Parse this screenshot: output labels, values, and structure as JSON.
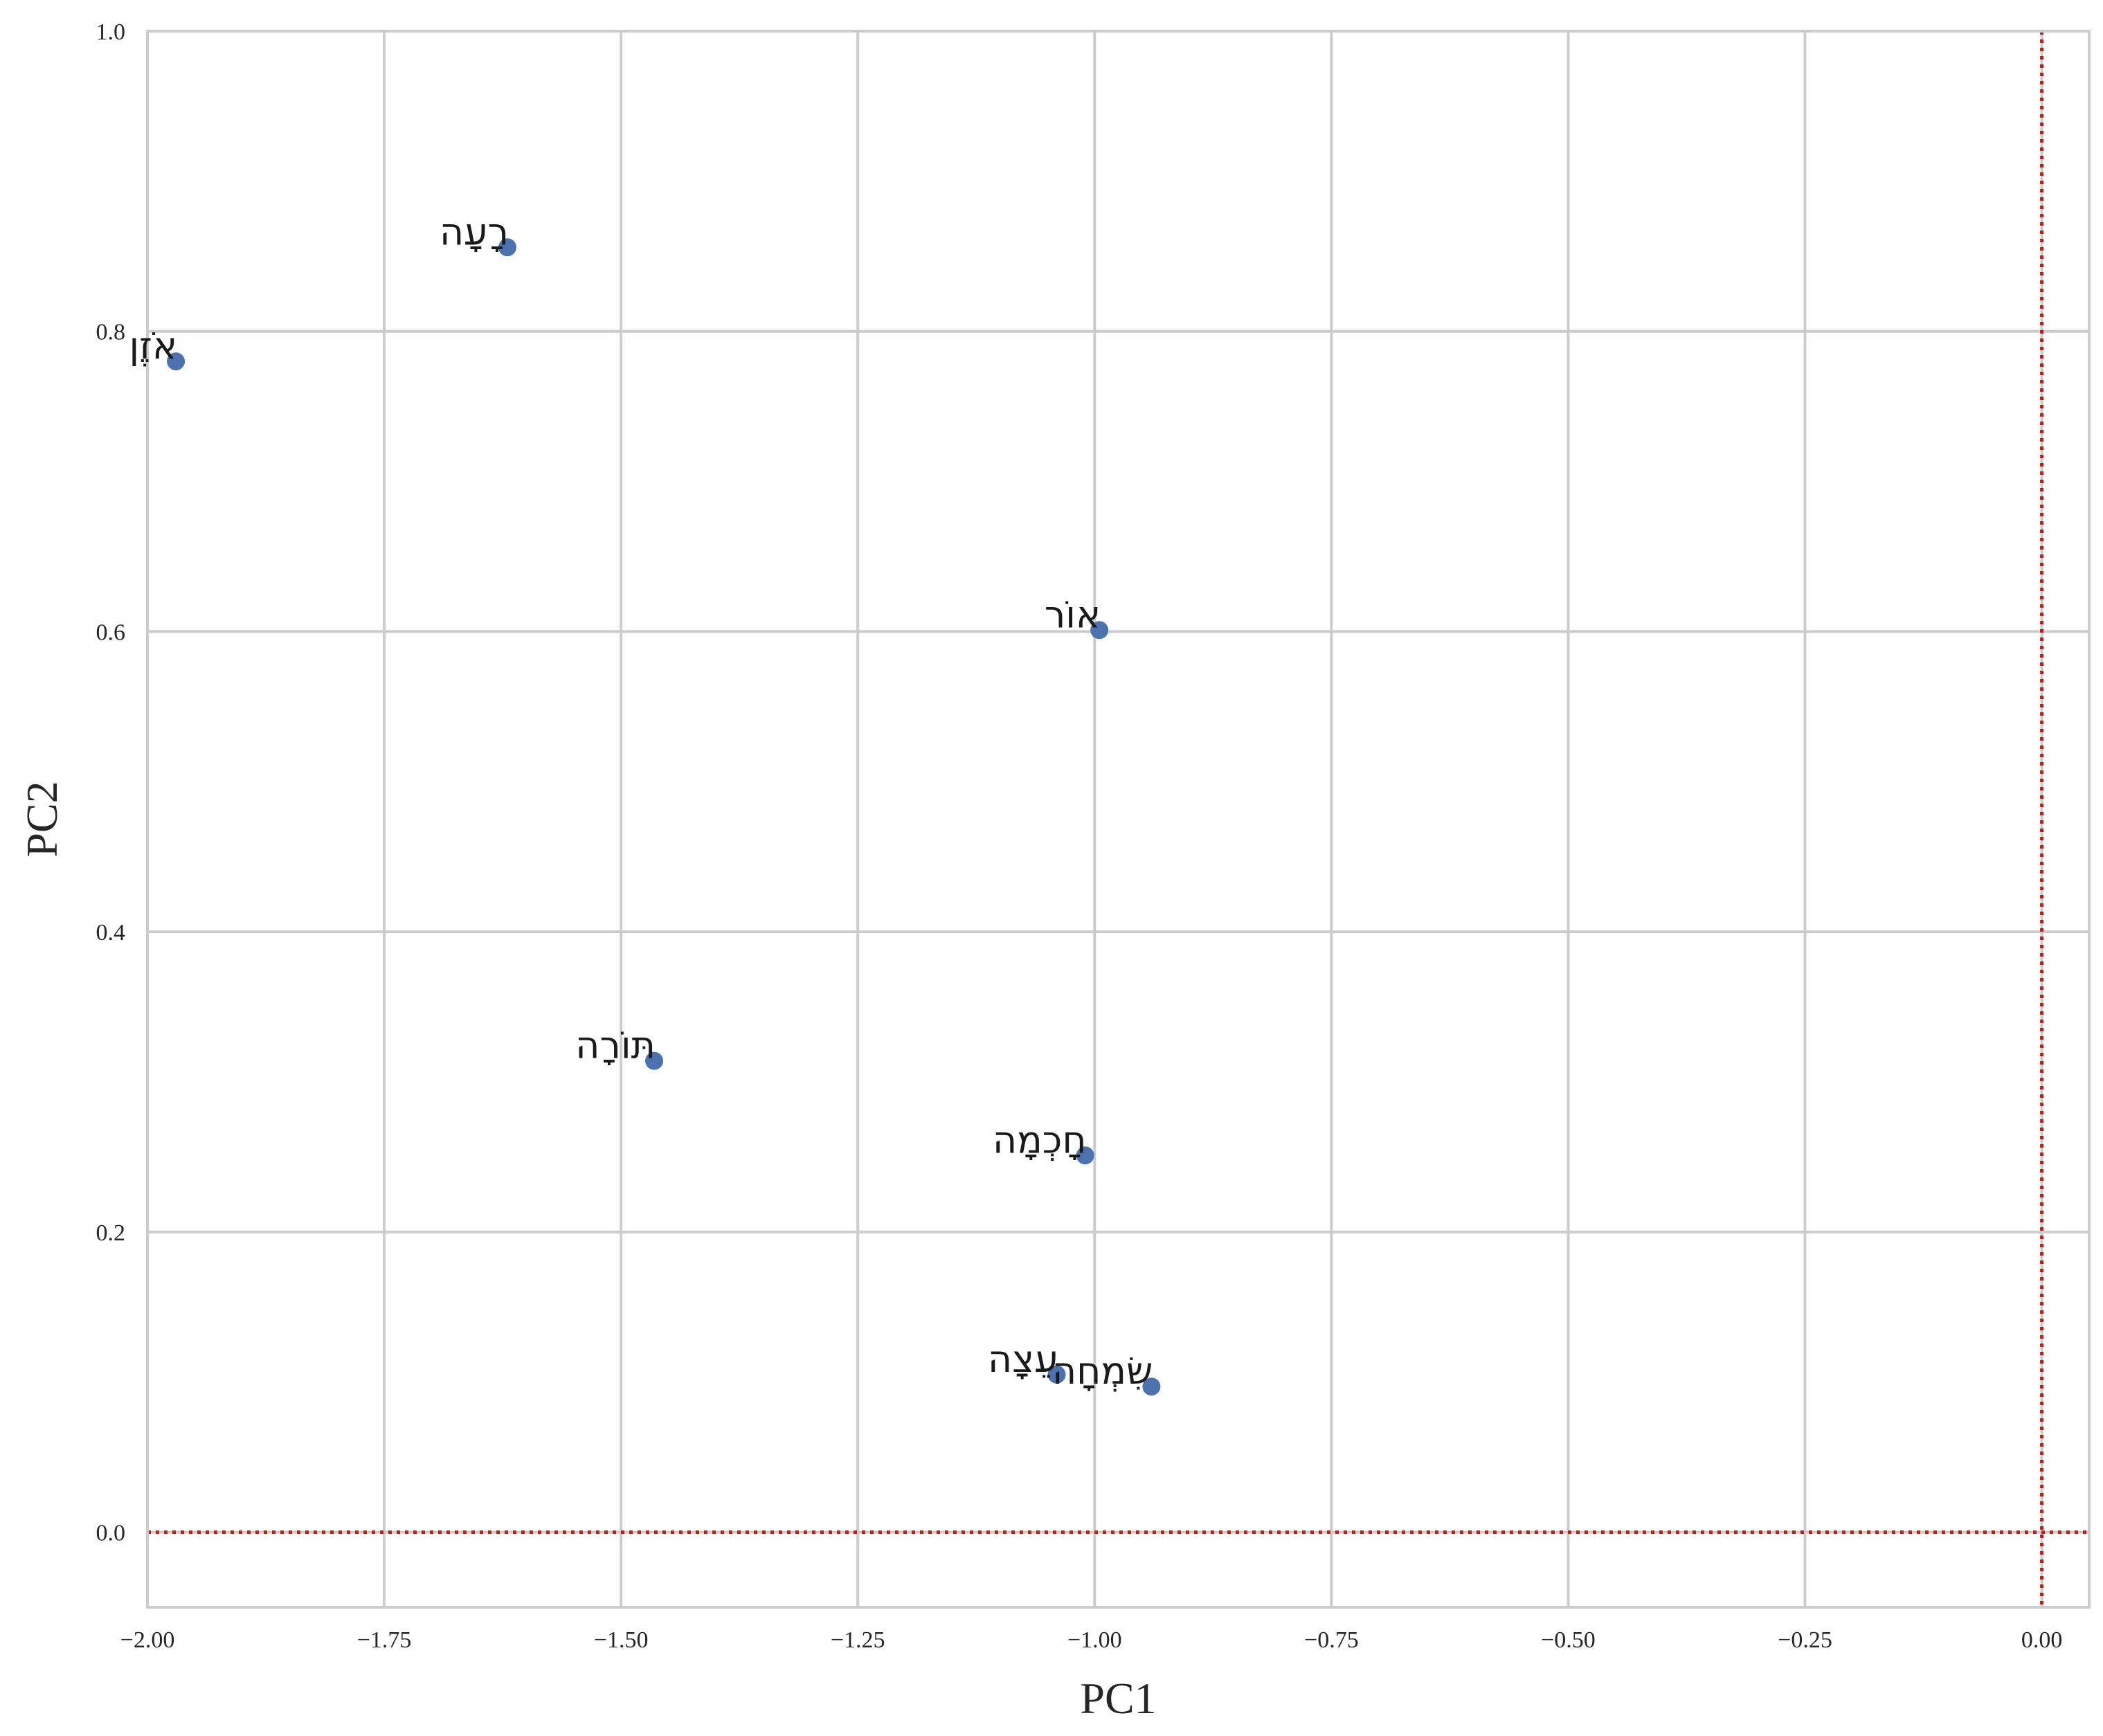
{
  "chart_data": {
    "type": "scatter",
    "title": "",
    "xlabel": "PC1",
    "ylabel": "PC2",
    "xlim": [
      -2.0,
      0.05
    ],
    "ylim": [
      -0.05,
      1.0
    ],
    "xticks": [
      -2.0,
      -1.75,
      -1.5,
      -1.25,
      -1.0,
      -0.75,
      -0.5,
      -0.25,
      0.0
    ],
    "yticks": [
      0.0,
      0.2,
      0.4,
      0.6,
      0.8,
      1.0
    ],
    "xtick_labels": [
      "−2.00",
      "−1.75",
      "−1.50",
      "−1.25",
      "−1.00",
      "−0.75",
      "−0.50",
      "−0.25",
      "0.00"
    ],
    "ytick_labels": [
      "0.0",
      "0.2",
      "0.4",
      "0.6",
      "0.8",
      "1.0"
    ],
    "grid": true,
    "points": [
      {
        "label": "רָעָה",
        "x": -1.62,
        "y": 0.856
      },
      {
        "label": "אֹזֶן",
        "x": -1.97,
        "y": 0.78
      },
      {
        "label": "אוֹר",
        "x": -0.995,
        "y": 0.601
      },
      {
        "label": "תּוֹרָה",
        "x": -1.465,
        "y": 0.314
      },
      {
        "label": "חָכְמָה",
        "x": -1.01,
        "y": 0.251
      },
      {
        "label": "עֵצָה",
        "x": -1.04,
        "y": 0.105
      },
      {
        "label": "שִׂמְחָה",
        "x": -0.94,
        "y": 0.097
      }
    ],
    "reference_lines": {
      "x": 0.0,
      "y": 0.0,
      "color": "#ff0000",
      "style": "dotted"
    },
    "colors": {
      "points": "#4c72b0",
      "grid": "#cccccc",
      "frame": "#cccccc",
      "text": "#262626"
    }
  }
}
